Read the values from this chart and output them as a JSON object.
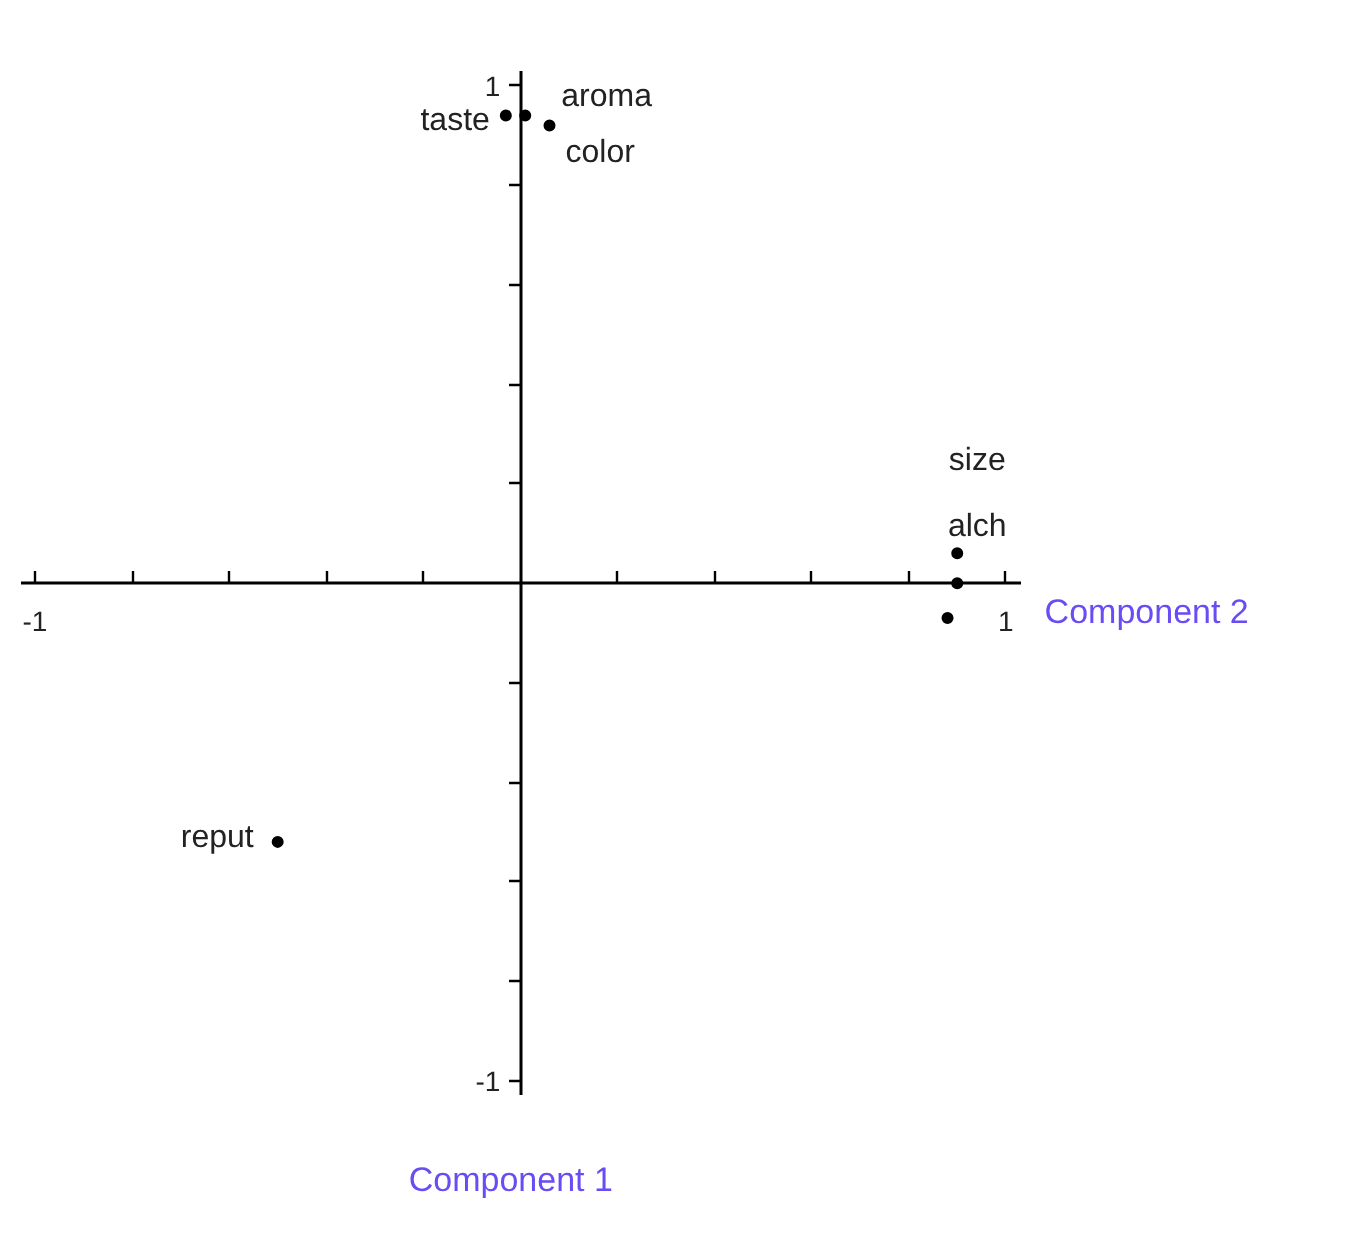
{
  "chart_data": {
    "type": "scatter",
    "xlabel": "Component 2",
    "ylabel": "Component 1",
    "x": [
      -0.03,
      0.01,
      0.06,
      0.9,
      0.9,
      0.88,
      -0.5
    ],
    "values": [
      0.94,
      0.94,
      0.92,
      0.06,
      0.0,
      -0.07,
      -0.52
    ],
    "color": "#000000",
    "marker": "circle",
    "grid": false,
    "xlim": [
      -1.07,
      1.67
    ],
    "ylim": [
      -1.29,
      1.17
    ],
    "xticks": [
      {
        "value": -1,
        "label": "-1"
      },
      {
        "value": -0.8,
        "label": null
      },
      {
        "value": -0.6,
        "label": null
      },
      {
        "value": -0.4,
        "label": null
      },
      {
        "value": -0.2,
        "label": null
      },
      {
        "value": 0.2,
        "label": null
      },
      {
        "value": 0.4,
        "label": null
      },
      {
        "value": 0.6,
        "label": null
      },
      {
        "value": 0.8,
        "label": null
      },
      {
        "value": 1,
        "label": "1"
      }
    ],
    "yticks": [
      {
        "value": -1,
        "label": "-1"
      },
      {
        "value": -0.8,
        "label": null
      },
      {
        "value": -0.6,
        "label": null
      },
      {
        "value": -0.4,
        "label": null
      },
      {
        "value": -0.2,
        "label": null
      },
      {
        "value": 0.2,
        "label": null
      },
      {
        "value": 0.4,
        "label": null
      },
      {
        "value": 0.6,
        "label": null
      },
      {
        "value": 0.8,
        "label": null
      },
      {
        "value": 1,
        "label": "1"
      }
    ],
    "value_labels": [
      "taste",
      "aroma",
      "color",
      "size",
      "alch",
      null,
      "reput"
    ]
  }
}
